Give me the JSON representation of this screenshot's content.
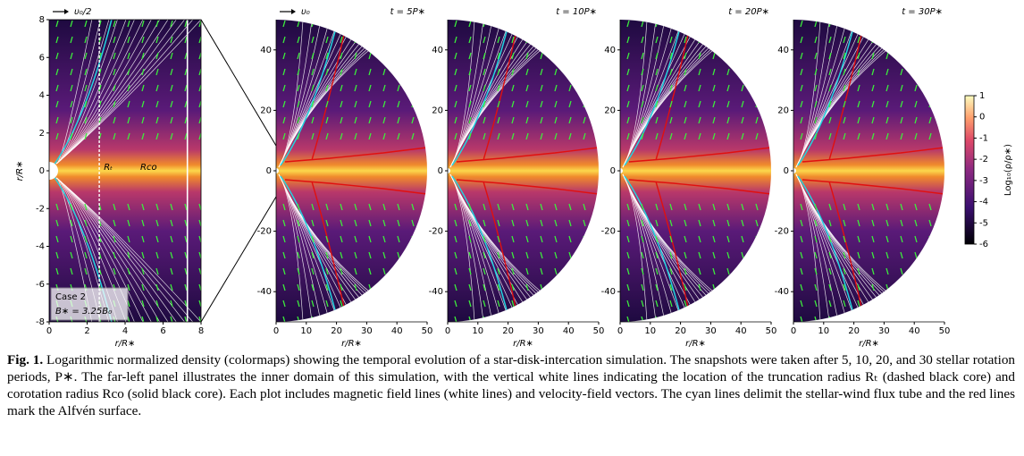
{
  "chart_data": [
    {
      "type": "image",
      "xlabel": "r/R∗",
      "ylabel": "r/R∗",
      "xlim": [
        0,
        8
      ],
      "ylim": [
        -8,
        8
      ],
      "xticks": [
        0,
        2,
        4,
        6,
        8
      ],
      "yticks": [
        -8,
        -6,
        -4,
        -2,
        0,
        2,
        4,
        6,
        8
      ],
      "velocity_key": "υ₀/2",
      "annotations": [
        "Rₜ",
        "Rco",
        "Case 2",
        "B∗ = 3.25B₀"
      ]
    },
    {
      "type": "disk",
      "title": "t = 5P∗",
      "xlabel": "r/R∗",
      "xlim": [
        0,
        50
      ],
      "ylim": [
        -50,
        50
      ],
      "xticks": [
        0,
        10,
        20,
        30,
        40,
        50
      ],
      "yticks": [
        -40,
        -20,
        0,
        20,
        40
      ],
      "velocity_key": "υ₀"
    },
    {
      "type": "disk",
      "title": "t = 10P∗",
      "xlabel": "r/R∗",
      "xlim": [
        0,
        50
      ],
      "ylim": [
        -50,
        50
      ],
      "xticks": [
        0,
        10,
        20,
        30,
        40,
        50
      ],
      "yticks": [
        -40,
        -20,
        0,
        20,
        40
      ]
    },
    {
      "type": "disk",
      "title": "t = 20P∗",
      "xlabel": "r/R∗",
      "xlim": [
        0,
        50
      ],
      "ylim": [
        -50,
        50
      ],
      "xticks": [
        0,
        10,
        20,
        30,
        40,
        50
      ],
      "yticks": [
        -40,
        -20,
        0,
        20,
        40
      ]
    },
    {
      "type": "disk",
      "title": "t = 30P∗",
      "xlabel": "r/R∗",
      "xlim": [
        0,
        50
      ],
      "ylim": [
        -50,
        50
      ],
      "xticks": [
        0,
        10,
        20,
        30,
        40,
        50
      ],
      "yticks": [
        -40,
        -20,
        0,
        20,
        40
      ]
    },
    {
      "type": "colorbar",
      "label": "Log₁₀(ρ/ρ∗)",
      "ylim": [
        -6,
        1
      ],
      "yticks": [
        -6,
        -5,
        -4,
        -3,
        -2,
        -1,
        0,
        1
      ]
    }
  ],
  "caption": {
    "label": "Fig. 1.",
    "text": "Logarithmic normalized density (colormaps) showing the temporal evolution of a star-disk-intercation simulation. The snapshots were taken after 5, 10, 20, and 30 stellar rotation periods, P∗. The far-left panel illustrates the inner domain of this simulation, with the vertical white lines indicating the location of the truncation radius Rₜ (dashed black core) and corotation radius Rco (solid black core). Each plot includes magnetic field lines (white lines) and velocity-field vectors. The cyan lines delimit the stellar-wind flux tube and the red lines mark the Alfvén surface."
  }
}
